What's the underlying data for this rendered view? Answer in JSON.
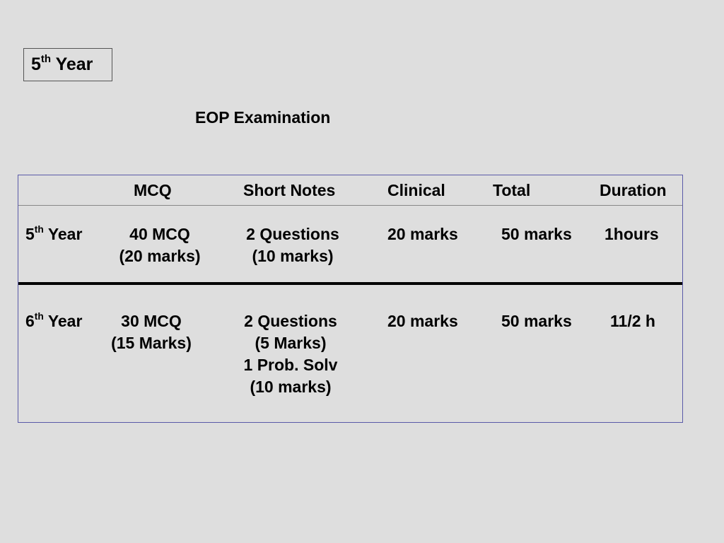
{
  "slide": {
    "title_number": "5",
    "title_suffix": "th",
    "title_word": "Year",
    "heading": "EOP Examination"
  },
  "table": {
    "headers": [
      "MCQ",
      "Short Notes",
      "Clinical",
      "Total",
      "Duration"
    ],
    "rows": [
      {
        "year_number": "5",
        "year_suffix": "th",
        "year_word": "Year",
        "mcq": [
          "40 MCQ",
          "(20 marks)"
        ],
        "short_notes": [
          "2 Questions",
          "(10 marks)"
        ],
        "clinical": "20 marks",
        "total": "50 marks",
        "duration": "1hours"
      },
      {
        "year_number": "6",
        "year_suffix": "th",
        "year_word": "Year",
        "mcq": [
          "30 MCQ",
          "(15 Marks)"
        ],
        "short_notes": [
          "2 Questions",
          "(5 Marks)",
          "1 Prob. Solv",
          "(10 marks)"
        ],
        "clinical": "20 marks",
        "total": "50 marks",
        "duration": "11/2 h"
      }
    ]
  }
}
